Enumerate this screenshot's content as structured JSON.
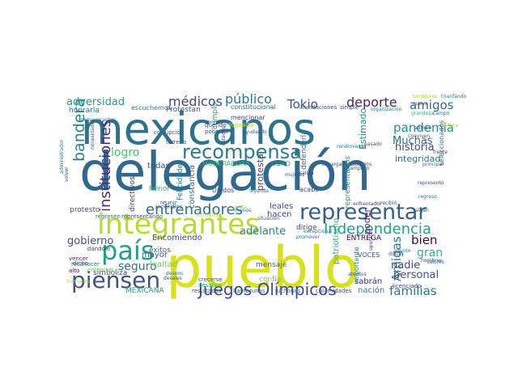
{
  "word_cloud": {
    "background": "#ffffff",
    "palette": "viridis",
    "words": [
      {
        "text": "delegación",
        "color": "#31688e"
      },
      {
        "text": "mexicanos",
        "color": "#2c728e"
      },
      {
        "text": "pueblo",
        "color": "#d8e219"
      },
      {
        "text": "recompensa",
        "color": "#287c8e"
      },
      {
        "text": "integrantes",
        "color": "#b5de2b"
      },
      {
        "text": "representar",
        "color": "#355f8d"
      },
      {
        "text": "país",
        "color": "#1fa187"
      },
      {
        "text": "piensen",
        "color": "#3b528b"
      },
      {
        "text": "Juegos Olímpicos",
        "color": "#3e4989"
      },
      {
        "text": "entrenadores",
        "color": "#2c728e"
      },
      {
        "text": "Independencia",
        "color": "#20a486"
      },
      {
        "text": "bandera",
        "color": "#25838e"
      },
      {
        "text": "público",
        "color": "#2a788e"
      },
      {
        "text": "médicos",
        "color": "#414487"
      },
      {
        "text": "deporte",
        "color": "#482475"
      },
      {
        "text": "Tokio",
        "color": "#3b528b"
      },
      {
        "text": "amigos",
        "color": "#306a8e"
      },
      {
        "text": "pandemia",
        "color": "#21918c"
      },
      {
        "text": "adversidad",
        "color": "#1f9e89"
      },
      {
        "text": "Muchas",
        "color": "#2d708e"
      },
      {
        "text": "historia",
        "color": "#3e4989"
      },
      {
        "text": "logro",
        "color": "#4ac16d"
      },
      {
        "text": "Amigas",
        "color": "#287c8e"
      },
      {
        "text": "familias",
        "color": "#2a788e"
      },
      {
        "text": "seguro",
        "color": "#2d708e"
      },
      {
        "text": "gobierno",
        "color": "#3b528b"
      },
      {
        "text": "adelante",
        "color": "#26828e"
      },
      {
        "text": "bien",
        "color": "#440154"
      },
      {
        "text": "gran",
        "color": "#31b57b"
      },
      {
        "text": "nadie",
        "color": "#3e4989"
      },
      {
        "text": "personal",
        "color": "#3b528b"
      },
      {
        "text": "integridad",
        "color": "#2d708e"
      },
      {
        "text": "instituciones",
        "color": "#472d7b"
      },
      {
        "text": "honrarla",
        "color": "#2a788e"
      },
      {
        "text": "todas",
        "color": "#3b528b"
      },
      {
        "text": "honor",
        "color": "#35b779"
      },
      {
        "text": "Encomiendo",
        "color": "#3e4989"
      },
      {
        "text": "mensaje",
        "color": "#31688e"
      },
      {
        "text": "sabrán",
        "color": "#482878"
      },
      {
        "text": "nación",
        "color": "#25838e"
      },
      {
        "text": "leales",
        "color": "#3b528b"
      },
      {
        "text": "hacen",
        "color": "#3e4989"
      },
      {
        "text": "protesta",
        "color": "#414487"
      },
      {
        "text": "poder",
        "color": "#482475"
      },
      {
        "text": "lealtad",
        "color": "#6ccd5a"
      },
      {
        "text": "protesto",
        "color": "#3b528b"
      },
      {
        "text": "éxitos",
        "color": "#31688e"
      },
      {
        "text": "mayor",
        "color": "#3b528b"
      },
      {
        "text": "simboliza",
        "color": "#3b528b"
      },
      {
        "text": "MEXICANA",
        "color": "#1fa187"
      },
      {
        "text": "Felicidades",
        "color": "#2a788e"
      },
      {
        "text": "constancia",
        "color": "#2c728e"
      },
      {
        "text": "dirige",
        "color": "#3e4989"
      },
      {
        "text": "confía",
        "color": "#6ccd5a"
      },
      {
        "text": "ENTREGA",
        "color": "#440154"
      },
      {
        "text": "patriotismo",
        "color": "#2fb47c"
      },
      {
        "text": "Estimado",
        "color": "#21918c"
      },
      {
        "text": "VOCES",
        "color": "#3b528b"
      },
      {
        "text": "escuchemos",
        "color": "#26828e"
      },
      {
        "text": "Protestan",
        "color": "#3b528b"
      },
      {
        "text": "MODERADORA",
        "color": "#35b779"
      },
      {
        "text": "CORO",
        "color": "#1f9e89"
      },
      {
        "text": "Unidos",
        "color": "#3b528b"
      },
      {
        "text": "cumplir",
        "color": "#1f9e89"
      },
      {
        "text": "mencionar",
        "color": "#414487"
      },
      {
        "text": "lograda",
        "color": "#aadc32"
      },
      {
        "text": "defenderla",
        "color": "#2a788e"
      },
      {
        "text": "constitucional",
        "color": "#31688e"
      },
      {
        "text": "representarlos",
        "color": "#1fa187"
      },
      {
        "text": "importante",
        "color": "#2a788e"
      },
      {
        "text": "acabo",
        "color": "#3e4989"
      },
      {
        "text": "reconocer",
        "color": "#2c728e"
      },
      {
        "text": "vencer",
        "color": "#482878"
      },
      {
        "text": "alto",
        "color": "#440154"
      },
      {
        "text": "dicho",
        "color": "#414487"
      },
      {
        "text": "enfrentar",
        "color": "#6ccd5a"
      },
      {
        "text": "desafíos",
        "color": "#22a884"
      },
      {
        "text": "crecerse",
        "color": "#38598c"
      },
      {
        "text": "resultados",
        "color": "#3b528b"
      },
      {
        "text": "hambrunas",
        "color": "#31688e"
      },
      {
        "text": "luchones",
        "color": "#2a788e"
      },
      {
        "text": "calamidades",
        "color": "#3e4989"
      },
      {
        "text": "corrupción",
        "color": "#3b528b"
      },
      {
        "text": "querido",
        "color": "#414487"
      },
      {
        "text": "pobreza",
        "color": "#3b528b"
      },
      {
        "text": "triunfando",
        "color": "#2a788e"
      },
      {
        "text": "temblores",
        "color": "#a2da37"
      },
      {
        "text": "inundaciones",
        "color": "#3b528b"
      },
      {
        "text": "simple",
        "color": "#3e4989"
      },
      {
        "text": "organización",
        "color": "#2a788e"
      },
      {
        "text": "grandeza",
        "color": "#35b779"
      },
      {
        "text": "campo",
        "color": "#2c728e"
      },
      {
        "text": "cultura",
        "color": "#aadc32"
      },
      {
        "text": "pasado",
        "color": "#3b528b"
      },
      {
        "text": "rendimiento",
        "color": "#2a788e"
      },
      {
        "text": "sabemos",
        "color": "#3e4989"
      },
      {
        "text": "encargada",
        "color": "#3b528b"
      },
      {
        "text": "excepcional",
        "color": "#2a788e"
      },
      {
        "text": "frente",
        "color": "#414487"
      },
      {
        "text": "mujeres",
        "color": "#3b528b"
      },
      {
        "text": "leyenda",
        "color": "#2a788e"
      },
      {
        "text": "situación",
        "color": "#3b528b"
      },
      {
        "text": "promover",
        "color": "#2a788e"
      },
      {
        "text": "licenciado",
        "color": "#414487"
      },
      {
        "text": "asunto",
        "color": "#2a788e"
      },
      {
        "text": "difícil",
        "color": "#3b528b"
      },
      {
        "text": "principal",
        "color": "#2c728e"
      },
      {
        "text": "hombres",
        "color": "#3e4989"
      },
      {
        "text": "seleccionados",
        "color": "#2a788e"
      },
      {
        "text": "representó",
        "color": "#3b528b"
      },
      {
        "text": "directivos",
        "color": "#414487"
      },
      {
        "text": "reunir",
        "color": "#3b528b"
      },
      {
        "text": "incendios",
        "color": "#2a788e"
      },
      {
        "text": "representando",
        "color": "#3b528b"
      },
      {
        "text": "dándole",
        "color": "#414487"
      },
      {
        "text": "terreno",
        "color": "#3b528b"
      },
      {
        "text": "administrador",
        "color": "#2a788e"
      },
      {
        "text": "volver",
        "color": "#3b528b"
      },
      {
        "text": "perseverantes",
        "color": "#2c728e"
      },
      {
        "text": "ayudando",
        "color": "#3b528b"
      },
      {
        "text": "regresen",
        "color": "#2a788e"
      },
      {
        "text": "suficiente",
        "color": "#aadc32"
      },
      {
        "text": "tampoco",
        "color": "#3b528b"
      },
      {
        "text": "enfrentador",
        "color": "#414487"
      },
      {
        "text": "salida",
        "color": "#3b528b"
      },
      {
        "text": "regreso",
        "color": "#2a788e"
      },
      {
        "text": "salgan",
        "color": "#3b528b"
      },
      {
        "text": "pista",
        "color": "#aadc32"
      },
      {
        "text": "menos",
        "color": "#2a788e"
      },
      {
        "text": "necesidades",
        "color": "#3b528b"
      },
      {
        "text": "ustedes",
        "color": "#3b528b"
      },
      {
        "text": "humanos",
        "color": "#aadc32"
      },
      {
        "text": "atentos",
        "color": "#3b528b"
      },
      {
        "text": "sencillo",
        "color": "#3b528b"
      },
      {
        "text": "deseos",
        "color": "#2a788e"
      },
      {
        "text": "desales",
        "color": "#3b528b"
      },
      {
        "text": "recibió",
        "color": "#3e4989"
      },
      {
        "text": "nueva",
        "color": "#3b528b"
      },
      {
        "text": "conviven",
        "color": "#3b528b"
      },
      {
        "text": "valores",
        "color": "#2a788e"
      },
      {
        "text": "admiro",
        "color": "#3b528b"
      },
      {
        "text": "operador",
        "color": "#3b528b"
      }
    ]
  }
}
